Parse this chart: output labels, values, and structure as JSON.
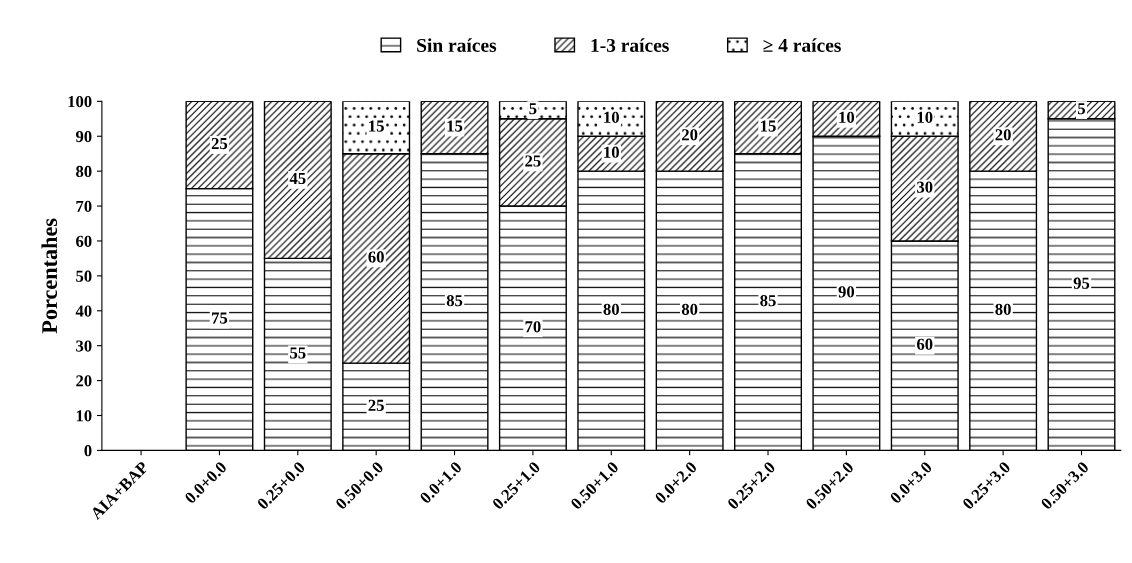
{
  "chart_data": {
    "type": "bar",
    "stacked": true,
    "ylabel": "Porcentahes",
    "categories": [
      "AIA+BAP",
      "0.0+0.0",
      "0.25+0.0",
      "0.50+0.0",
      "0.0+1.0",
      "0.25+1.0",
      "0.50+1.0",
      "0.0+2.0",
      "0.25+2.0",
      "0.50+2.0",
      "0.0+3.0",
      "0.25+3.0",
      "0.50+3.0"
    ],
    "series": [
      {
        "name": "Sin raíces",
        "color": "#000000",
        "values": [
          null,
          75,
          55,
          25,
          85,
          70,
          80,
          80,
          85,
          90,
          60,
          80,
          95
        ],
        "value_labels": [
          null,
          "75",
          "55",
          "25",
          "85",
          "70",
          "80",
          "80",
          "85",
          "90",
          "60",
          "80",
          "95"
        ]
      },
      {
        "name": "1-3 raíces",
        "color": "#000000",
        "values": [
          null,
          25,
          45,
          60,
          15,
          25,
          10,
          20,
          15,
          10,
          30,
          20,
          5
        ],
        "value_labels": [
          null,
          "25",
          "45",
          "60",
          "15",
          "25",
          "10",
          "20",
          "15",
          "10",
          "30",
          "20",
          "5"
        ]
      },
      {
        "name": "≥ 4 raíces",
        "color": "#000000",
        "values": [
          null,
          0,
          0,
          15,
          0,
          5,
          10,
          0,
          0,
          0,
          10,
          0,
          0
        ],
        "value_labels": [
          null,
          null,
          null,
          "15",
          null,
          "5",
          "10",
          null,
          null,
          null,
          "10",
          null,
          null
        ]
      }
    ],
    "ylim": [
      0,
      100
    ],
    "yticks": [
      0,
      10,
      20,
      30,
      40,
      50,
      60,
      70,
      80,
      90,
      100
    ],
    "legend": "top",
    "grid": false
  }
}
